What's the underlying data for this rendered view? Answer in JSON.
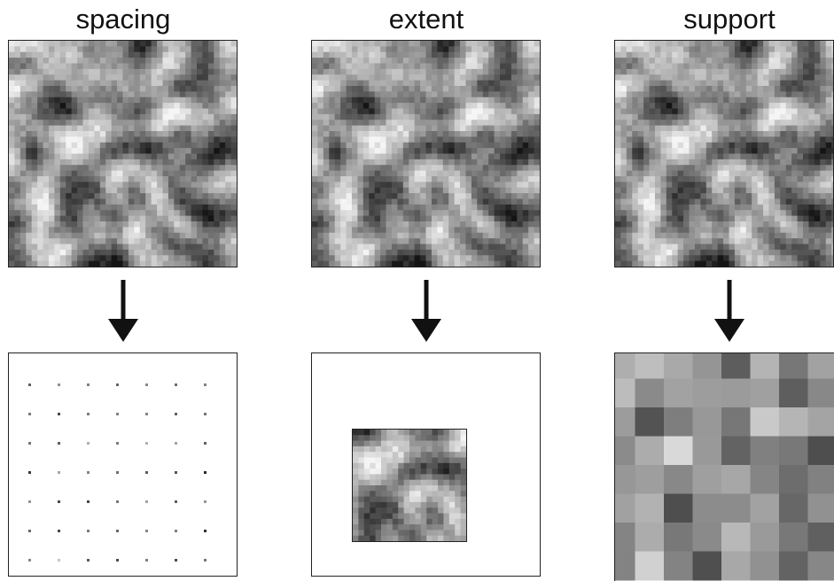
{
  "columns": [
    {
      "id": "spacing",
      "title": "spacing"
    },
    {
      "id": "extent",
      "title": "extent"
    },
    {
      "id": "support",
      "title": "support"
    }
  ],
  "colors": {
    "stroke": "#222222",
    "background": "#ffffff",
    "arrow": "#111111"
  },
  "grid": {
    "field_cells": 40,
    "spacing_points_per_side": 7,
    "support_blocks_per_side": 8
  }
}
